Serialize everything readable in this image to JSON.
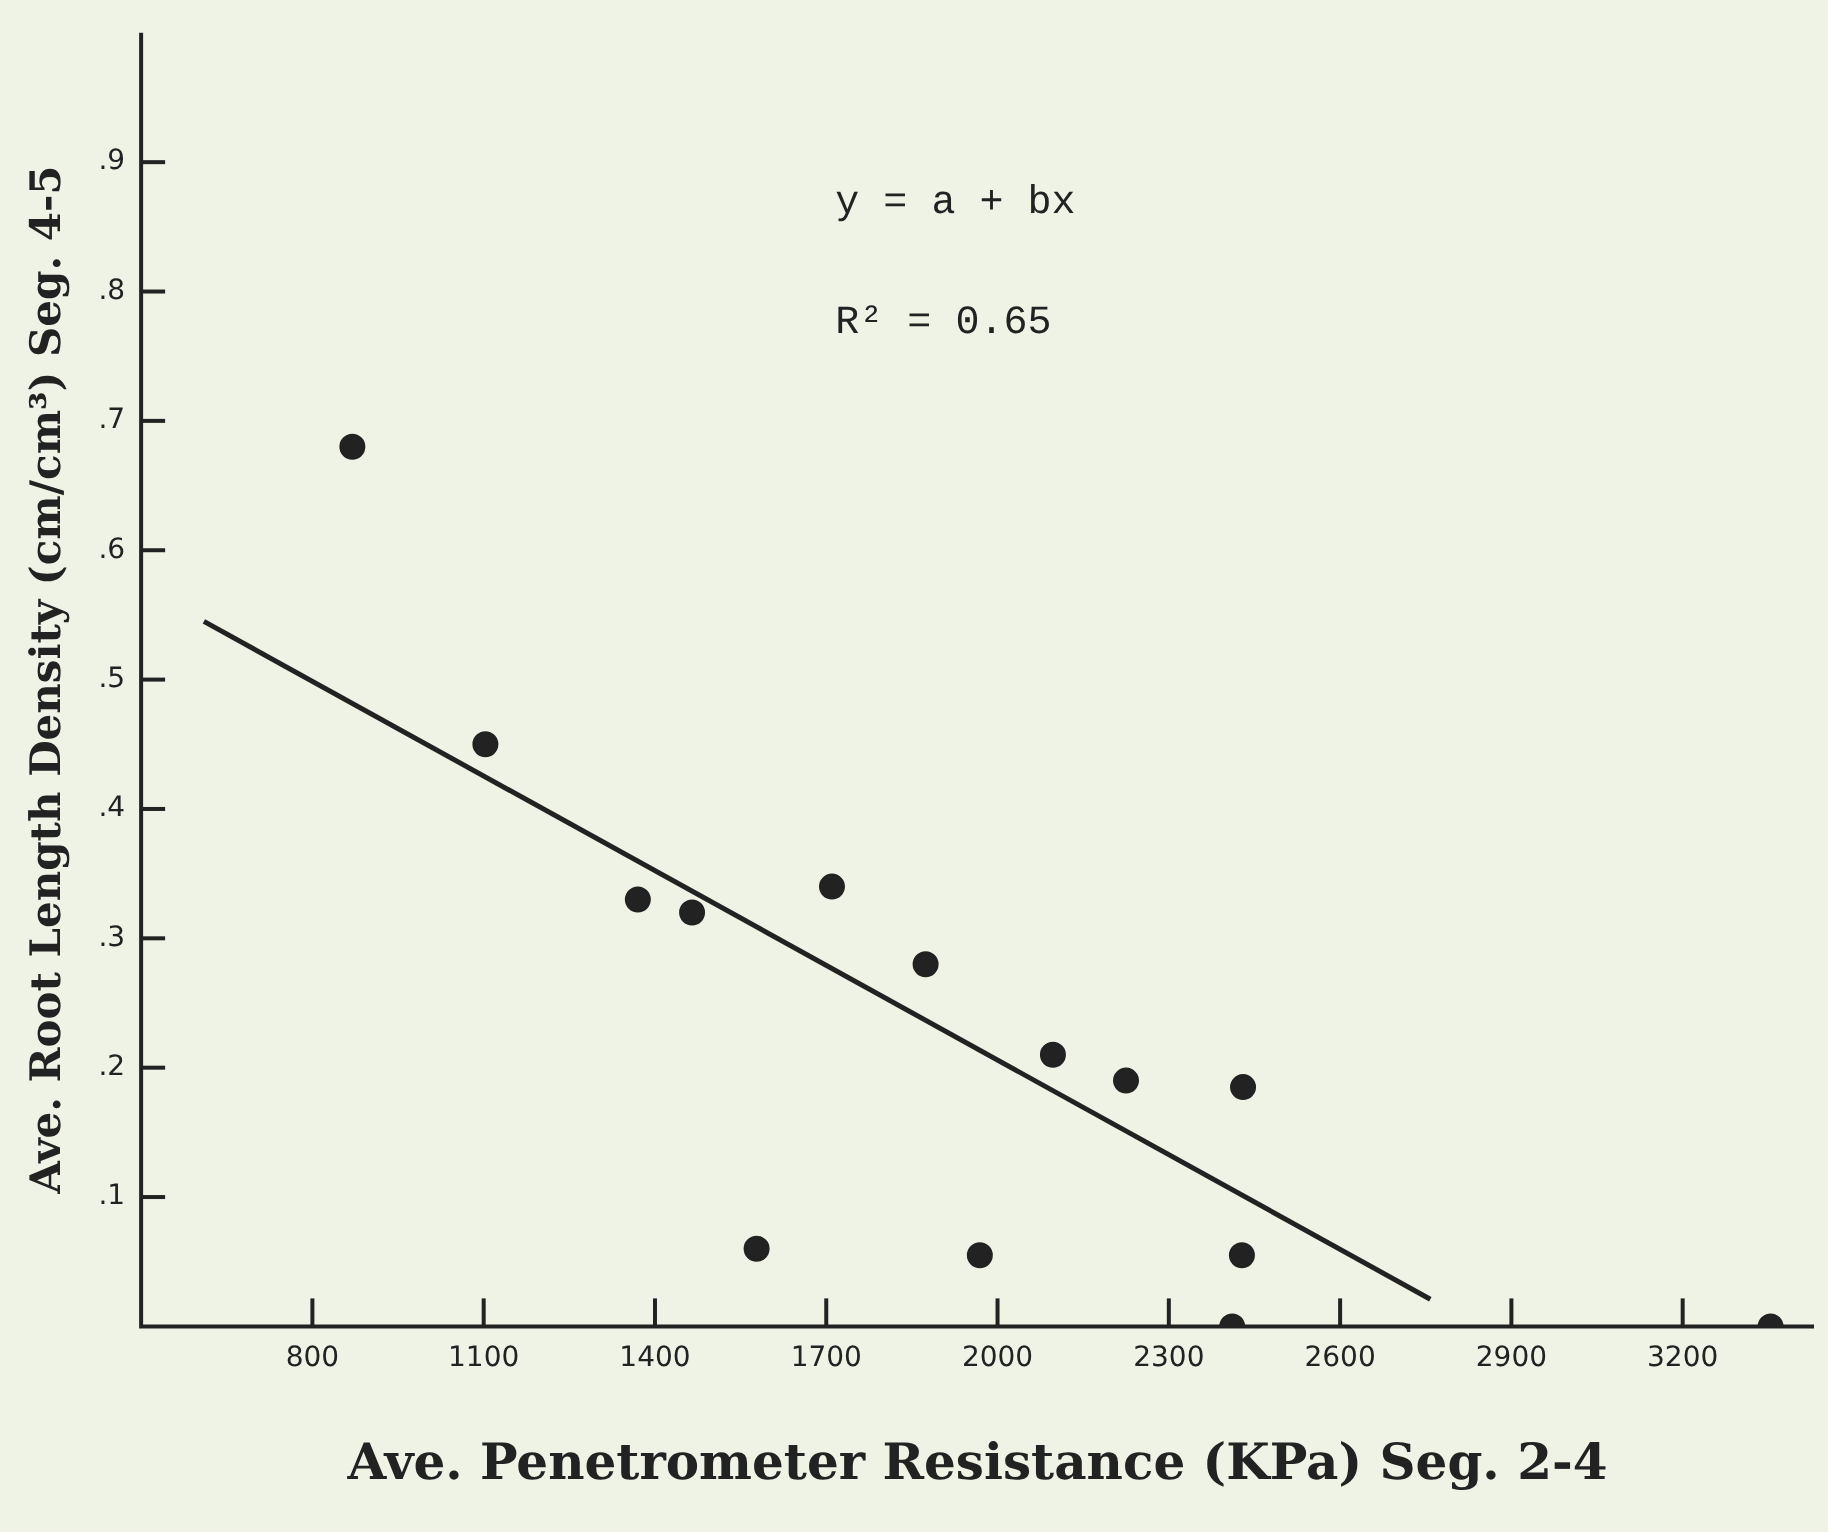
{
  "chart_data": {
    "type": "scatter",
    "xlabel": "Ave. Penetrometer Resistance (KPa) Seg. 2-4",
    "ylabel": "Ave. Root Length Density (cm/cm³) Seg. 4-5",
    "xlim": [
      500,
      3430
    ],
    "xticks": [
      800,
      1100,
      1400,
      1700,
      2000,
      2300,
      2600,
      2900,
      3200
    ],
    "ylim": [
      0,
      1.0
    ],
    "yticks": [
      {
        "value": 0.1,
        "label": ".1"
      },
      {
        "value": 0.2,
        "label": ".2"
      },
      {
        "value": 0.3,
        "label": ".3"
      },
      {
        "value": 0.4,
        "label": ".4"
      },
      {
        "value": 0.5,
        "label": ".5"
      },
      {
        "value": 0.6,
        "label": ".6"
      },
      {
        "value": 0.7,
        "label": ".7"
      },
      {
        "value": 0.8,
        "label": ".8"
      },
      {
        "value": 0.9,
        "label": ".9"
      }
    ],
    "grid": false,
    "legend": false,
    "annotations": [
      "y = a + bx",
      "R² = 0.65"
    ],
    "series": [
      {
        "marker": "circle",
        "color": "#222222",
        "x": [
          870,
          1103,
          1370,
          1465,
          1710,
          1874,
          2097,
          2225,
          2430,
          1578,
          1969,
          2428,
          2411,
          3354
        ],
        "values": [
          0.68,
          0.45,
          0.33,
          0.32,
          0.34,
          0.28,
          0.21,
          0.19,
          0.185,
          0.06,
          0.055,
          0.055,
          0,
          0
        ]
      },
      {
        "type": "line",
        "color": "#222222",
        "x": [
          610,
          2758
        ],
        "values": [
          0.545,
          0.021
        ]
      }
    ]
  }
}
